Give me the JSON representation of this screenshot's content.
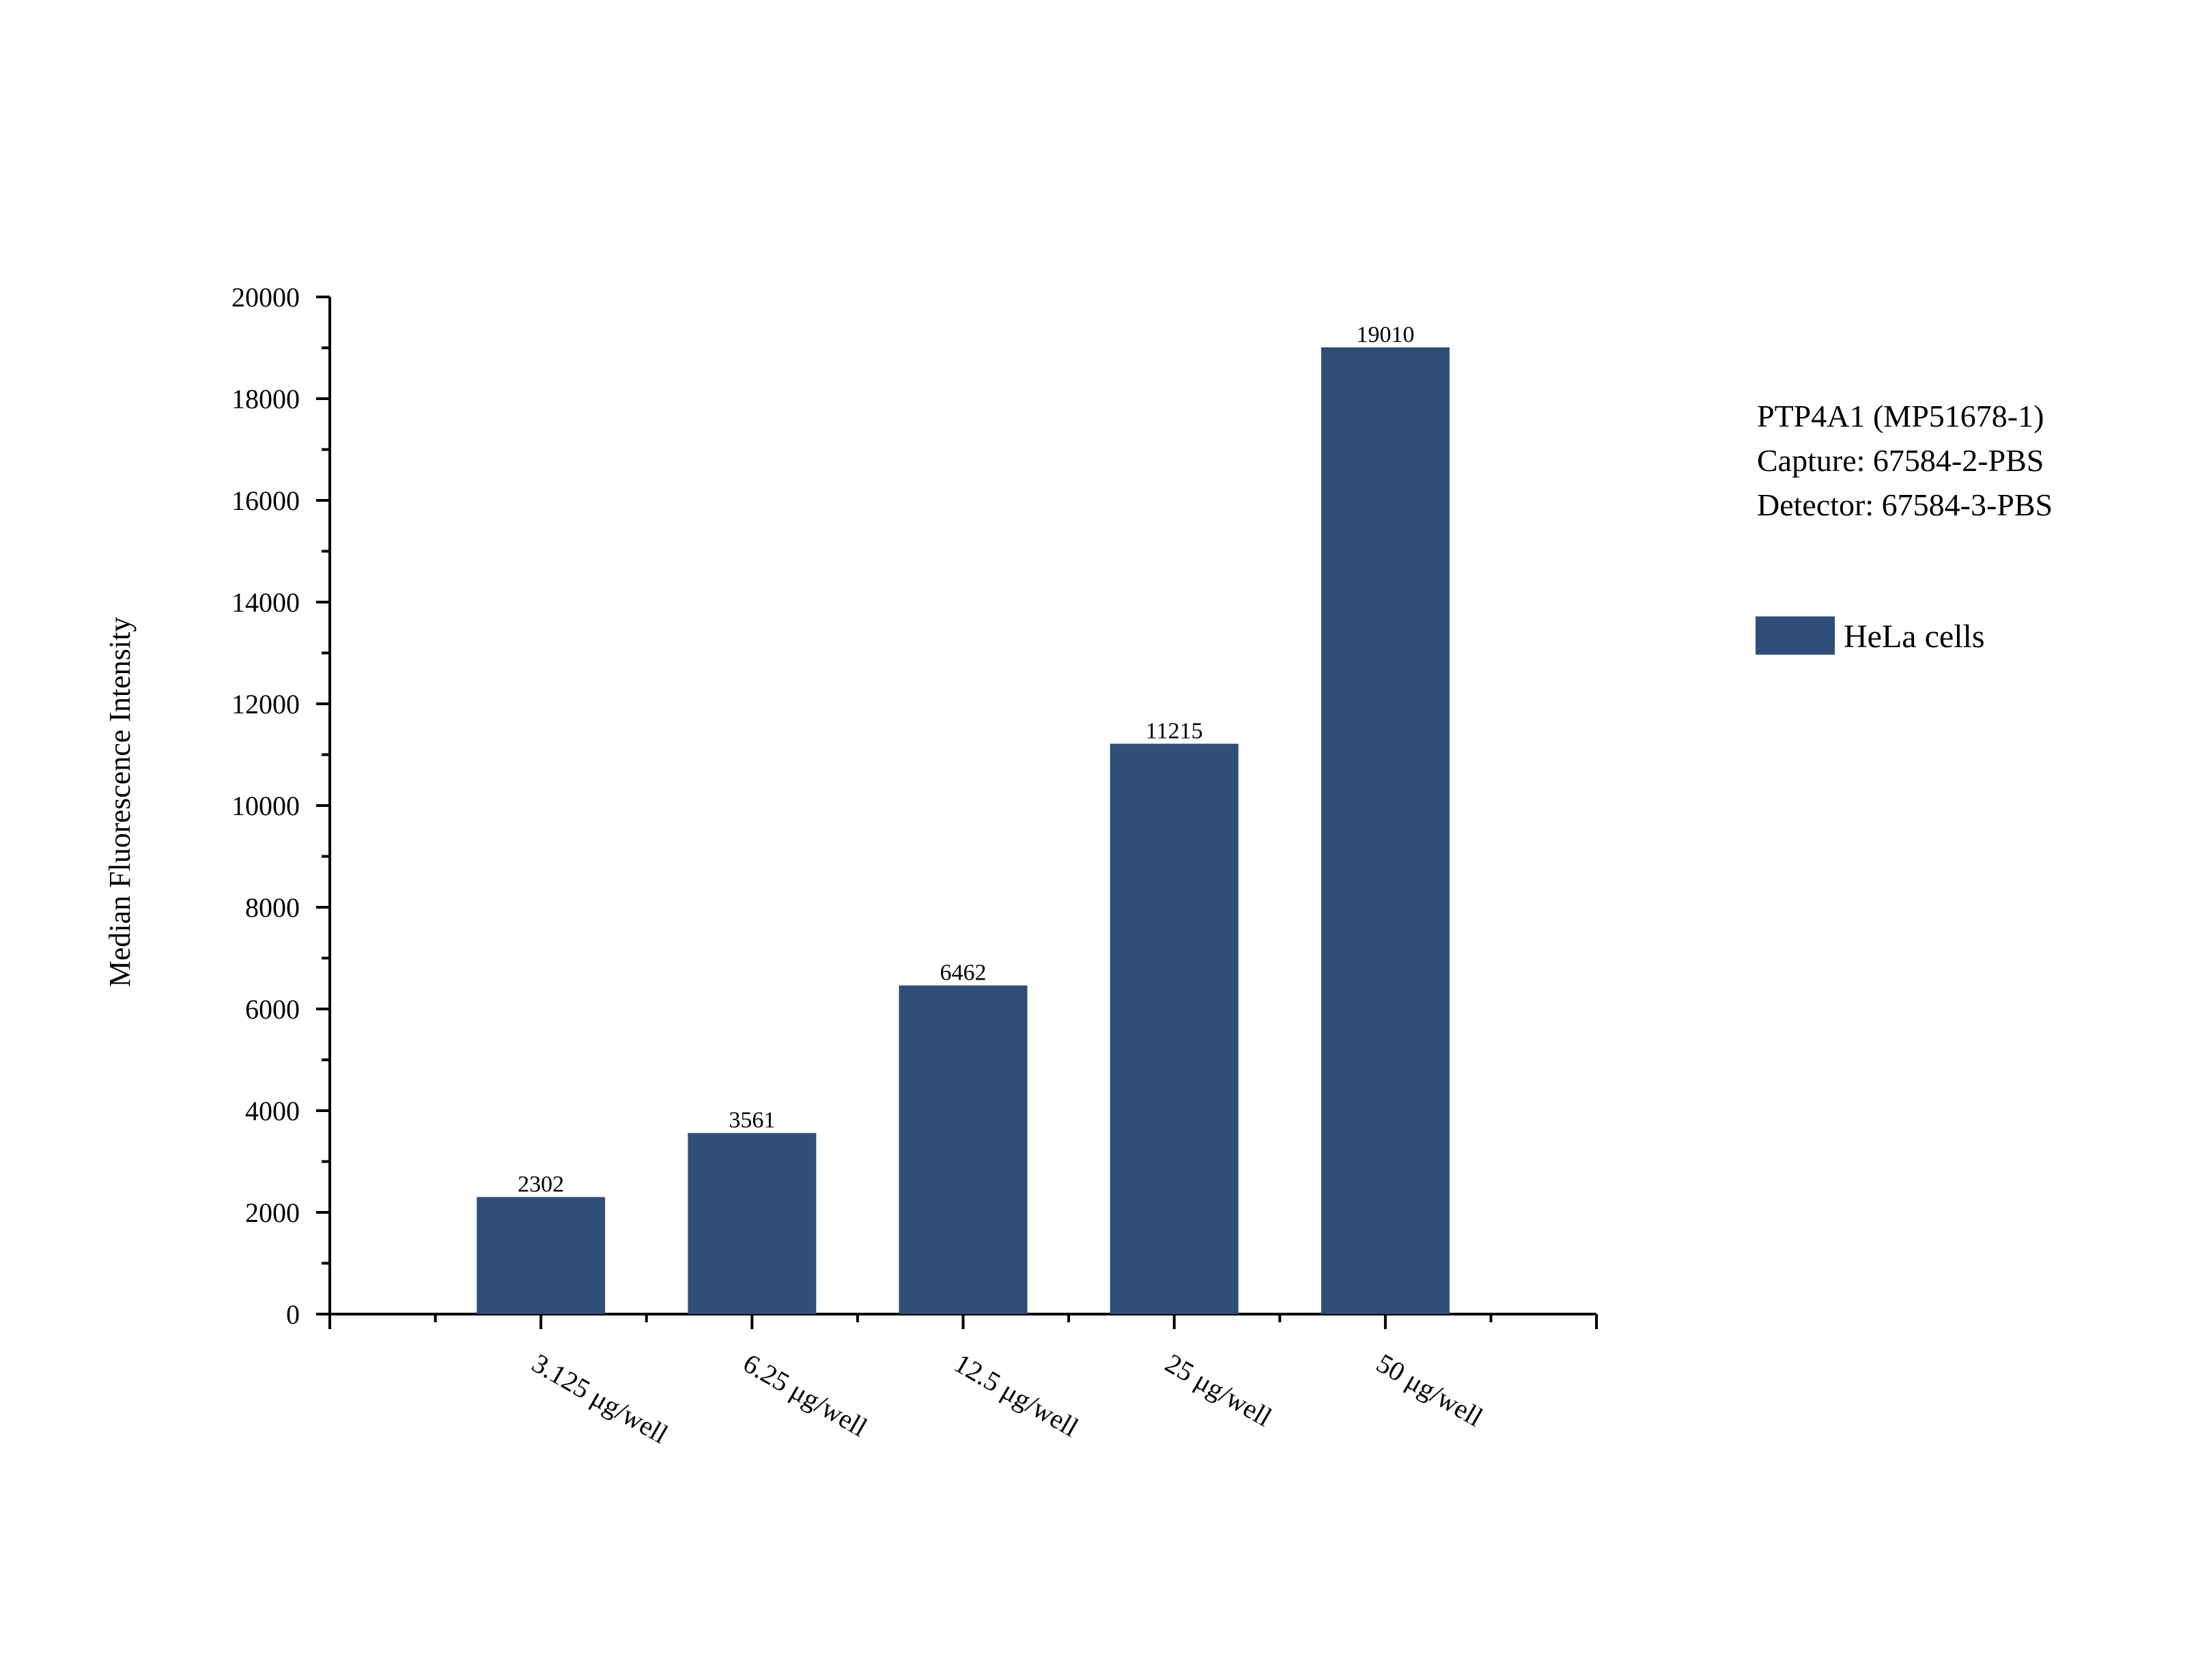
{
  "colors": {
    "bar": "#2f4f7a",
    "axis": "#000000",
    "background": "#ffffff"
  },
  "annotation": {
    "lines": [
      "PTP4A1 (MP51678-1)",
      "Capture: 67584-2-PBS",
      "Detector: 67584-3-PBS"
    ]
  },
  "chart_data": {
    "type": "bar",
    "title": "",
    "xlabel": "",
    "ylabel": "Median Fluorescence Intensity",
    "categories": [
      "3.125 μg/well",
      "6.25 μg/well",
      "12.5 μg/well",
      "25 μg/well",
      "50 μg/well"
    ],
    "series": [
      {
        "name": "HeLa cells",
        "values": [
          2302,
          3561,
          6462,
          11215,
          19010
        ]
      }
    ],
    "data_labels": [
      "2302",
      "3561",
      "6462",
      "11215",
      "19010"
    ],
    "ylim": [
      0,
      20000
    ],
    "yticks": [
      0,
      2000,
      4000,
      6000,
      8000,
      10000,
      12000,
      14000,
      16000,
      18000,
      20000
    ],
    "ytick_labels": [
      "0",
      "2000",
      "4000",
      "6000",
      "8000",
      "10000",
      "12000",
      "14000",
      "16000",
      "18000",
      "20000"
    ],
    "grid": false,
    "legend_position": "right"
  }
}
